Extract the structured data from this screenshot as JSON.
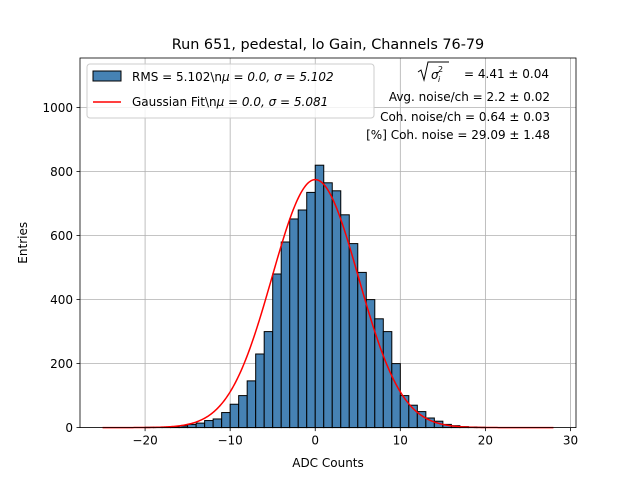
{
  "chart_data": {
    "type": "histogram",
    "title": "Run 651, pedestal, lo Gain, Channels 76-79",
    "xlabel": "ADC Counts",
    "ylabel": "Entries",
    "xlim": [
      -27.65,
      30.65
    ],
    "ylim": [
      0,
      1155
    ],
    "grid": true,
    "x_ticks": [
      -20,
      -10,
      0,
      10,
      20,
      30
    ],
    "x_tick_labels": [
      "−20",
      "−10",
      "0",
      "10",
      "20",
      "30"
    ],
    "y_ticks": [
      0,
      200,
      400,
      600,
      800,
      1000
    ],
    "y_tick_labels": [
      "0",
      "200",
      "400",
      "600",
      "800",
      "1000"
    ],
    "colors": {
      "bar": "#4682b4",
      "fit": "#ff0000",
      "grid": "#b0b0b0"
    },
    "histogram": {
      "name": "RMS = 5.102\\nμ = 0.0, σ = 5.102",
      "bin_width": 1,
      "bin_lefts": [
        -25,
        -24,
        -23,
        -22,
        -21,
        -20,
        -19,
        -18,
        -17,
        -16,
        -15,
        -14,
        -13,
        -12,
        -11,
        -10,
        -9,
        -8,
        -7,
        -6,
        -5,
        -4,
        -3,
        -2,
        -1,
        0,
        1,
        2,
        3,
        4,
        5,
        6,
        7,
        8,
        9,
        10,
        11,
        12,
        13,
        14,
        15,
        16,
        17,
        18,
        19,
        20,
        21,
        22,
        23,
        24,
        25,
        26,
        27
      ],
      "counts": [
        0,
        0,
        0,
        0,
        0,
        1,
        1,
        2,
        3,
        5,
        10,
        14,
        22,
        27,
        47,
        73,
        100,
        146,
        230,
        300,
        480,
        580,
        652,
        680,
        735,
        820,
        765,
        740,
        665,
        575,
        485,
        400,
        340,
        300,
        200,
        100,
        70,
        50,
        30,
        20,
        10,
        6,
        3,
        2,
        1,
        0,
        0,
        0,
        0,
        0,
        0,
        0,
        0
      ]
    },
    "fit": {
      "name": "Gaussian Fit\\nμ = 0.0, σ = 5.081",
      "mu": 0.0,
      "sigma": 5.081,
      "amplitude": 775,
      "x_range": [
        -25,
        28
      ]
    },
    "legend": {
      "position": "upper-left",
      "entries": [
        {
          "label_main": "RMS = 5.102\\n",
          "mu_part": "μ = 0.0, ",
          "sigma_part": "σ = 5.102"
        },
        {
          "label_main": "Gaussian Fit\\n",
          "mu_part": "μ = 0.0, ",
          "sigma_part": "σ = 5.081"
        }
      ]
    },
    "annotations": {
      "sigma_sq_value": " = 4.41 ± 0.04",
      "lines": [
        "Avg. noise/ch = 2.2 ± 0.02",
        "Coh. noise/ch = 0.64 ± 0.03",
        "[%] Coh. noise = 29.09 ± 1.48"
      ]
    }
  }
}
